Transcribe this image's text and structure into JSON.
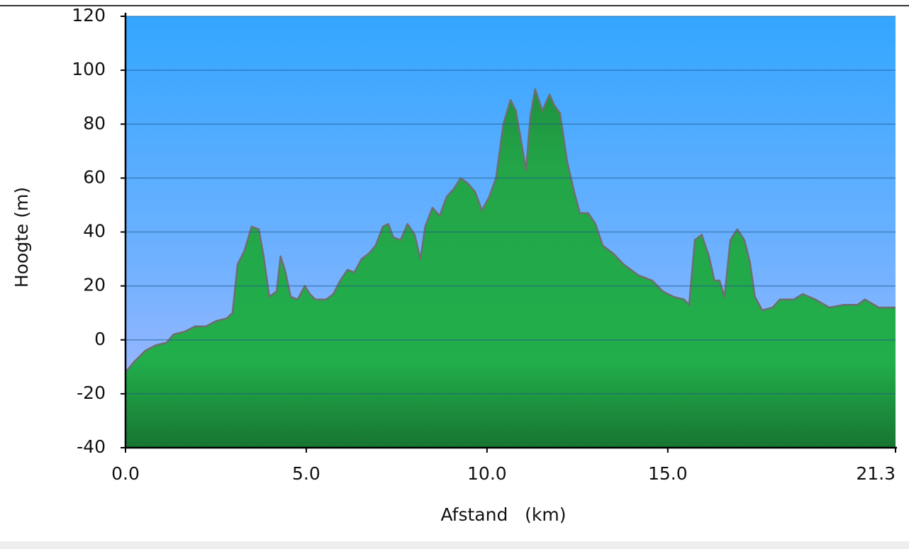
{
  "chart_data": {
    "type": "area",
    "x_label": "Afstand   (km)",
    "y_label": "Hoogte (m)",
    "x": [
      0,
      0.25,
      0.55,
      0.84,
      1.14,
      1.33,
      1.63,
      1.92,
      2.22,
      2.51,
      2.8,
      2.96,
      3.1,
      3.29,
      3.49,
      3.69,
      3.82,
      3.98,
      4.18,
      4.29,
      4.41,
      4.57,
      4.76,
      4.96,
      5.1,
      5.25,
      5.55,
      5.75,
      5.94,
      6.14,
      6.33,
      6.53,
      6.73,
      6.92,
      7.12,
      7.27,
      7.41,
      7.61,
      7.8,
      8.0,
      8.16,
      8.29,
      8.49,
      8.69,
      8.88,
      9.08,
      9.27,
      9.47,
      9.67,
      9.86,
      10.06,
      10.25,
      10.45,
      10.65,
      10.8,
      10.94,
      11.08,
      11.2,
      11.33,
      11.53,
      11.73,
      11.86,
      12.02,
      12.22,
      12.41,
      12.57,
      12.8,
      13.0,
      13.2,
      13.49,
      13.78,
      14.18,
      14.57,
      14.86,
      15.16,
      15.45,
      15.59,
      15.75,
      15.94,
      16.14,
      16.29,
      16.43,
      16.57,
      16.73,
      16.92,
      17.12,
      17.27,
      17.41,
      17.61,
      17.9,
      18.1,
      18.49,
      18.73,
      19.08,
      19.47,
      19.86,
      20.25,
      20.45,
      20.84,
      21.3
    ],
    "values": [
      -12,
      -8,
      -4,
      -2,
      -1,
      2,
      3,
      5,
      5,
      7,
      8,
      10,
      28,
      33,
      42,
      41,
      31,
      16,
      18,
      31,
      26,
      16,
      15,
      20,
      17,
      15,
      15,
      17,
      22,
      26,
      25,
      30,
      32,
      35,
      42,
      43,
      38,
      37,
      43,
      39,
      30,
      42,
      49,
      46,
      53,
      56,
      60,
      58,
      55,
      48,
      53,
      60,
      80,
      89,
      85,
      74,
      63,
      83,
      93,
      85,
      91,
      87,
      84,
      66,
      55,
      47,
      47,
      43,
      35,
      32,
      28,
      24,
      22,
      18,
      16,
      15,
      13,
      37,
      39,
      31,
      22,
      22,
      16,
      37,
      41,
      37,
      29,
      16,
      11,
      12,
      15,
      15,
      17,
      15,
      12,
      13,
      13,
      15,
      12,
      12
    ],
    "color": "#22a84a",
    "xlim": [
      0,
      21.3
    ],
    "xticks": [
      {
        "value": 0,
        "label": "0.0"
      },
      {
        "value": 5,
        "label": "5.0"
      },
      {
        "value": 10,
        "label": "10.0"
      },
      {
        "value": 15,
        "label": "15.0"
      },
      21.3
    ],
    "ylim": [
      -40,
      120
    ],
    "yticks": [
      -40,
      -20,
      0,
      20,
      40,
      60,
      80,
      100,
      120
    ],
    "grid": true
  }
}
